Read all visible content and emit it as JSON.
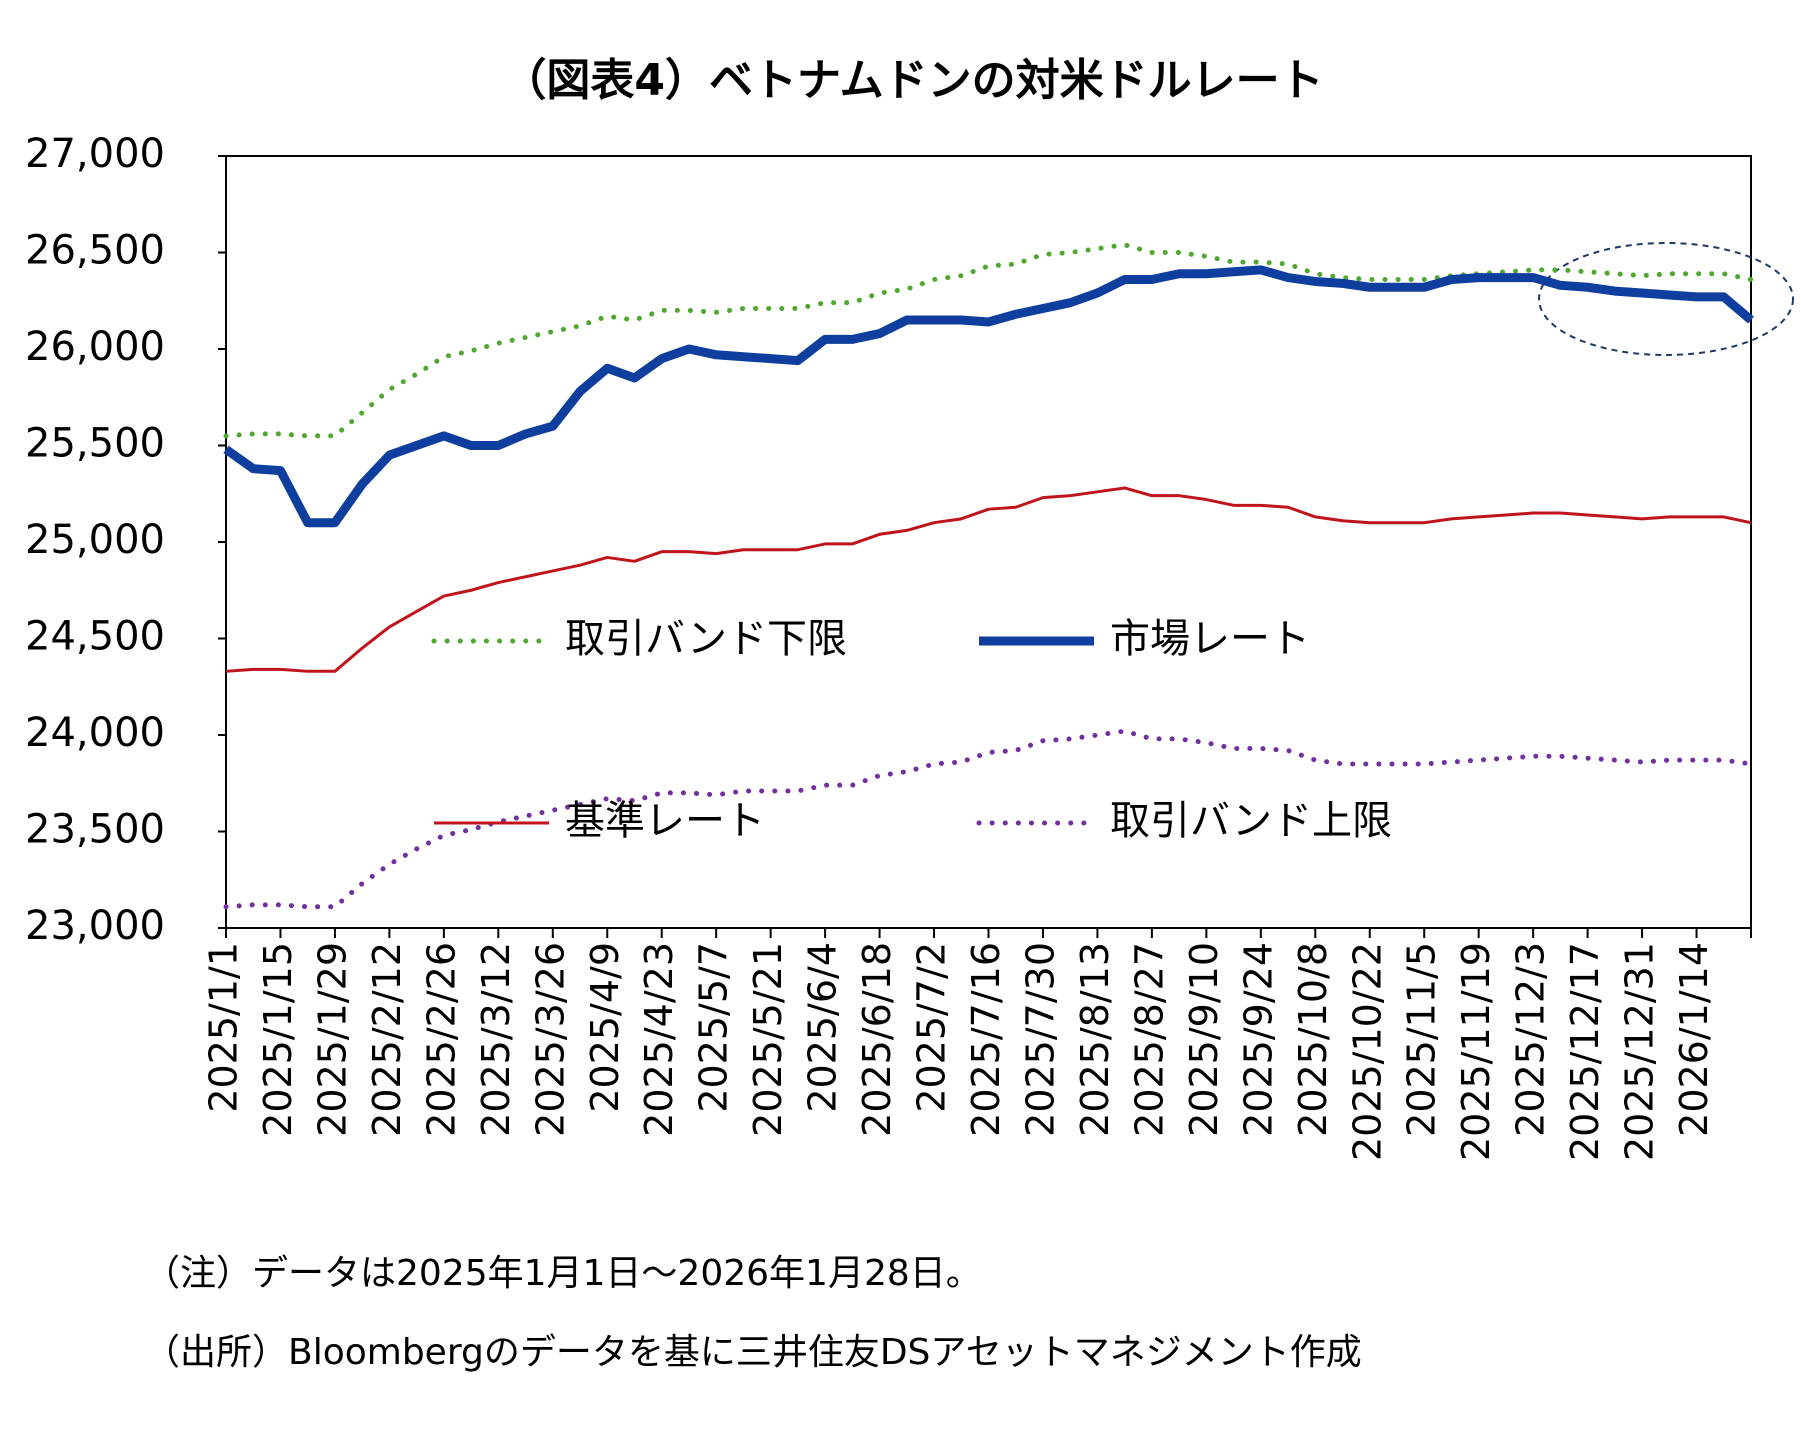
{
  "chart_data": {
    "type": "line",
    "title": "（図表4）ベトナムドンの対米ドルレート",
    "categories": [
      "2025/1/1",
      null,
      "2025/1/15",
      null,
      "2025/1/29",
      null,
      "2025/2/12",
      null,
      "2025/2/26",
      null,
      "2025/3/12",
      null,
      "2025/3/26",
      null,
      "2025/4/9",
      null,
      "2025/4/23",
      null,
      "2025/5/7",
      null,
      "2025/5/21",
      null,
      "2025/6/4",
      null,
      "2025/6/18",
      null,
      "2025/7/2",
      null,
      "2025/7/16",
      null,
      "2025/7/30",
      null,
      "2025/8/13",
      null,
      "2025/8/27",
      null,
      "2025/9/10",
      null,
      "2025/9/24",
      null,
      "2025/10/8",
      null,
      "2025/10/22",
      null,
      "2025/11/5",
      null,
      "2025/11/19",
      null,
      "2025/12/3",
      null,
      "2025/12/17",
      null,
      "2025/12/31",
      null,
      "2026/1/14",
      null,
      null
    ],
    "series": [
      {
        "name": "取引バンド下限",
        "color": "#4ea72e",
        "style": "dotted",
        "line_width": 5,
        "values": [
          25550,
          25560,
          25560,
          25550,
          25550,
          25670,
          25790,
          25870,
          25960,
          25990,
          26030,
          26060,
          26090,
          26120,
          26170,
          26150,
          26200,
          26200,
          26190,
          26210,
          26210,
          26210,
          26240,
          26240,
          26290,
          26310,
          26360,
          26380,
          26430,
          26440,
          26490,
          26500,
          26520,
          26540,
          26500,
          26500,
          26480,
          26450,
          26450,
          26440,
          26390,
          26370,
          26360,
          26360,
          26360,
          26380,
          26390,
          26400,
          26410,
          26410,
          26400,
          26390,
          26380,
          26390,
          26390,
          26390,
          26360
        ]
      },
      {
        "name": "市場レート",
        "color": "#0f3f9e",
        "style": "solid",
        "line_width": 9,
        "values": [
          25480,
          25380,
          25370,
          25100,
          25100,
          25300,
          25450,
          25500,
          25550,
          25500,
          25500,
          25560,
          25600,
          25780,
          25900,
          25850,
          25950,
          26000,
          25970,
          25960,
          25950,
          25940,
          26050,
          26050,
          26080,
          26150,
          26150,
          26150,
          26140,
          26180,
          26210,
          26240,
          26290,
          26360,
          26360,
          26390,
          26390,
          26400,
          26410,
          26370,
          26350,
          26340,
          26320,
          26320,
          26320,
          26360,
          26370,
          26370,
          26370,
          26330,
          26320,
          26300,
          26290,
          26280,
          26270,
          26270,
          26150
        ]
      },
      {
        "name": "基準レート",
        "color": "#c0141c",
        "style": "solid",
        "line_width": 3,
        "values": [
          24330,
          24340,
          24340,
          24330,
          24330,
          24450,
          24560,
          24640,
          24720,
          24750,
          24790,
          24820,
          24850,
          24880,
          24920,
          24900,
          24950,
          24950,
          24940,
          24960,
          24960,
          24960,
          24990,
          24990,
          25040,
          25060,
          25100,
          25120,
          25170,
          25180,
          25230,
          25240,
          25260,
          25280,
          25240,
          25240,
          25220,
          25190,
          25190,
          25180,
          25130,
          25110,
          25100,
          25100,
          25100,
          25120,
          25130,
          25140,
          25150,
          25150,
          25140,
          25130,
          25120,
          25130,
          25130,
          25130,
          25100
        ]
      },
      {
        "name": "取引バンド上限",
        "color": "#7030a0",
        "style": "dotted",
        "line_width": 5,
        "values": [
          23110,
          23120,
          23120,
          23110,
          23110,
          23230,
          23330,
          23410,
          23480,
          23510,
          23550,
          23580,
          23610,
          23640,
          23670,
          23660,
          23700,
          23700,
          23690,
          23710,
          23710,
          23710,
          23740,
          23740,
          23790,
          23810,
          23850,
          23860,
          23910,
          23920,
          23970,
          23980,
          24000,
          24020,
          23980,
          23980,
          23960,
          23930,
          23930,
          23920,
          23870,
          23850,
          23850,
          23850,
          23850,
          23860,
          23870,
          23880,
          23890,
          23890,
          23880,
          23870,
          23860,
          23870,
          23870,
          23870,
          23850
        ]
      }
    ],
    "ylim": [
      23000,
      27000
    ],
    "yticks": [
      {
        "value": 23000,
        "label": "23,000"
      },
      {
        "value": 23500,
        "label": "23,500"
      },
      {
        "value": 24000,
        "label": "24,000"
      },
      {
        "value": 24500,
        "label": "24,500"
      },
      {
        "value": 25000,
        "label": "25,000"
      },
      {
        "value": 25500,
        "label": "25,500"
      },
      {
        "value": 26000,
        "label": "26,000"
      },
      {
        "value": 26500,
        "label": "26,500"
      },
      {
        "value": 27000,
        "label": "27,000"
      }
    ],
    "grid": false,
    "notes": [
      "（注）データは2025年1月1日～2026年1月28日。",
      "（出所）Bloombergのデータを基に三井住友DSアセットマネジメント作成"
    ]
  }
}
